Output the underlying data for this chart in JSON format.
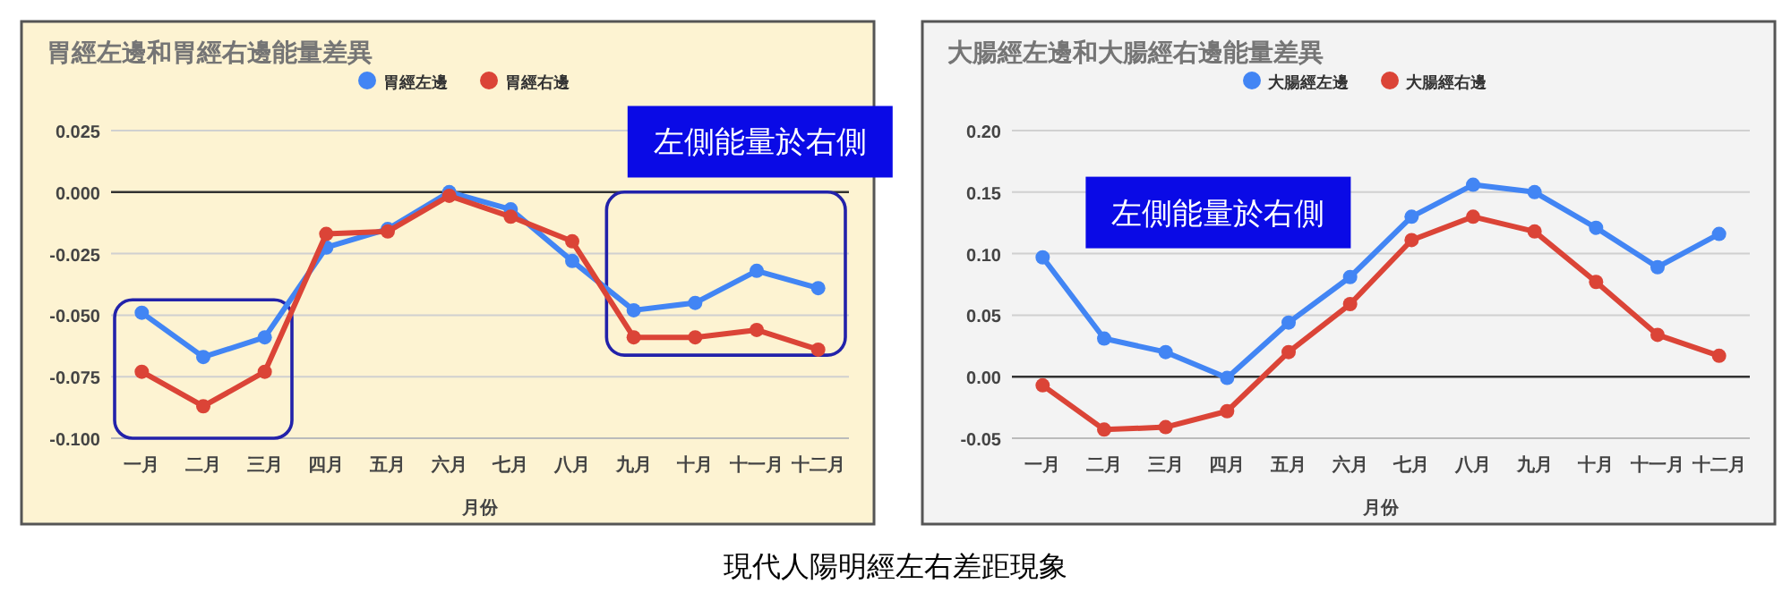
{
  "chart_data": [
    {
      "type": "line",
      "title": "胃經左邊和胃經右邊能量差異",
      "xlabel": "月份",
      "categories": [
        "一月",
        "二月",
        "三月",
        "四月",
        "五月",
        "六月",
        "七月",
        "八月",
        "九月",
        "十月",
        "十一月",
        "十二月"
      ],
      "series": [
        {
          "name": "胃經左邊",
          "color": "#4285f4",
          "values": [
            -0.049,
            -0.067,
            -0.059,
            -0.0225,
            -0.015,
            0.0,
            -0.007,
            -0.028,
            -0.048,
            -0.045,
            -0.032,
            -0.039
          ]
        },
        {
          "name": "胃經右邊",
          "color": "#db4437",
          "values": [
            -0.073,
            -0.087,
            -0.073,
            -0.017,
            -0.016,
            -0.0015,
            -0.01,
            -0.02,
            -0.059,
            -0.059,
            -0.056,
            -0.064
          ]
        }
      ],
      "ylim": [
        -0.1,
        0.025
      ],
      "yticks": [
        {
          "value": -0.1,
          "label": "-0.100"
        },
        {
          "value": -0.075,
          "label": "-0.075"
        },
        {
          "value": -0.05,
          "label": "-0.050"
        },
        {
          "value": -0.025,
          "label": "-0.025"
        },
        {
          "value": 0,
          "label": "0.000"
        },
        {
          "value": 0.025,
          "label": "0.025"
        }
      ],
      "grid": "y",
      "legend": "top",
      "marker": "circle",
      "line_style": "solid",
      "annotations": [
        "左側能量於右側",
        "現代人陽明經左右差距現象"
      ]
    },
    {
      "type": "line",
      "title": "大腸經左邊和大腸經右邊能量差異",
      "xlabel": "月份",
      "categories": [
        "一月",
        "二月",
        "三月",
        "四月",
        "五月",
        "六月",
        "七月",
        "八月",
        "九月",
        "十月",
        "十一月",
        "十二月"
      ],
      "series": [
        {
          "name": "大腸經左邊",
          "color": "#4285f4",
          "values": [
            0.097,
            0.031,
            0.02,
            -0.001,
            0.044,
            0.081,
            0.13,
            0.156,
            0.15,
            0.121,
            0.089,
            0.116
          ]
        },
        {
          "name": "大腸經右邊",
          "color": "#db4437",
          "values": [
            -0.007,
            -0.043,
            -0.041,
            -0.028,
            0.02,
            0.059,
            0.111,
            0.13,
            0.118,
            0.077,
            0.034,
            0.017
          ]
        }
      ],
      "ylim": [
        -0.05,
        0.2
      ],
      "yticks": [
        {
          "value": -0.05,
          "label": "-0.05"
        },
        {
          "value": 0,
          "label": "0.00"
        },
        {
          "value": 0.05,
          "label": "0.05"
        },
        {
          "value": 0.1,
          "label": "0.10"
        },
        {
          "value": 0.15,
          "label": "0.15"
        },
        {
          "value": 0.2,
          "label": "0.20"
        }
      ],
      "grid": "y",
      "legend": "top",
      "marker": "circle",
      "line_style": "solid",
      "annotations": [
        "左側能量於右側"
      ]
    }
  ]
}
